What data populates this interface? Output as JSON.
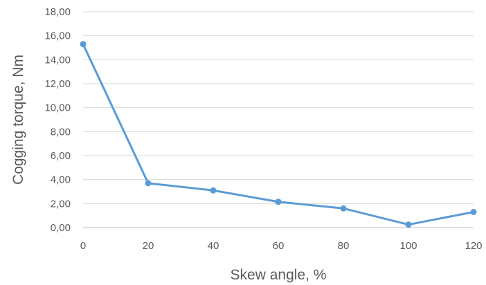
{
  "chart_data": {
    "type": "line",
    "title": "",
    "xlabel": "Skew angle, %",
    "ylabel": "Cogging torque, Nm",
    "x": [
      0,
      20,
      40,
      60,
      80,
      100,
      120
    ],
    "y_tick_labels": [
      "0,00",
      "2,00",
      "4,00",
      "6,00",
      "8,00",
      "10,00",
      "12,00",
      "14,00",
      "16,00",
      "18,00"
    ],
    "x_tick_labels": [
      "0",
      "20",
      "40",
      "60",
      "80",
      "100",
      "120"
    ],
    "series": [
      {
        "values": [
          15.3,
          3.7,
          3.1,
          2.15,
          1.6,
          0.25,
          1.3
        ],
        "color": "#5b9bd5"
      }
    ],
    "xlim": [
      0,
      120
    ],
    "ylim": [
      0,
      18
    ],
    "grid": true,
    "legend": "none"
  }
}
